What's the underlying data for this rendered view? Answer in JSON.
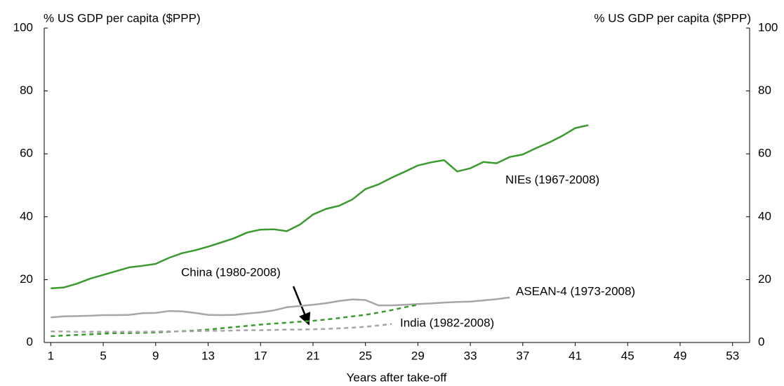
{
  "chart_data": {
    "type": "line",
    "ylabel": "% US GDP per capita ($PPP)",
    "y2label": "% US GDP per capita ($PPP)",
    "xlabel": "Years after take-off",
    "x": [
      1,
      2,
      3,
      4,
      5,
      6,
      7,
      8,
      9,
      10,
      11,
      12,
      13,
      14,
      15,
      16,
      17,
      18,
      19,
      20,
      21,
      22,
      23,
      24,
      25,
      26,
      27,
      28,
      29,
      30,
      31,
      32,
      33,
      34,
      35,
      36,
      37,
      38,
      39,
      40,
      41,
      42
    ],
    "xlim": [
      0.5,
      54.3
    ],
    "xticks": [
      1,
      5,
      9,
      13,
      17,
      21,
      25,
      29,
      33,
      37,
      41,
      45,
      49,
      53
    ],
    "ylim": [
      0,
      100
    ],
    "yticks": [
      0,
      20,
      40,
      60,
      80,
      100
    ],
    "y2lim": [
      0,
      100
    ],
    "y2ticks": [
      0,
      20,
      40,
      60,
      80,
      100
    ],
    "series": [
      {
        "name": "NIEs (1967-2008)",
        "color": "#3a9a2e",
        "dashed": false,
        "values": [
          17.2,
          17.5,
          18.7,
          20.3,
          21.5,
          22.7,
          23.9,
          24.4,
          25,
          26.9,
          28.4,
          29.3,
          30.5,
          31.8,
          33.2,
          35,
          35.9,
          36,
          35.4,
          37.5,
          40.7,
          42.5,
          43.5,
          45.5,
          48.8,
          50.3,
          52.4,
          54.3,
          56.3,
          57.3,
          58,
          54.4,
          55.4,
          57.4,
          57,
          59,
          59.8,
          61.8,
          63.6,
          65.7,
          68.2,
          69.1
        ]
      },
      {
        "name": "ASEAN-4 (1973-2008)",
        "color": "#a6a6a6",
        "dashed": false,
        "values": [
          8,
          8.3,
          8.4,
          8.5,
          8.7,
          8.7,
          8.8,
          9.3,
          9.4,
          10,
          9.9,
          9.4,
          8.8,
          8.7,
          8.8,
          9.2,
          9.6,
          10.2,
          11.2,
          11.6,
          12,
          12.5,
          13.2,
          13.7,
          13.5,
          11.8,
          11.8,
          12,
          12.2,
          12.4,
          12.7,
          12.9,
          13,
          13.4,
          13.8,
          14.3,
          null,
          null,
          null,
          null,
          null,
          null
        ]
      },
      {
        "name": "China (1980-2008)",
        "color": "#3a9a2e",
        "dashed": true,
        "values": [
          2,
          2.2,
          2.4,
          2.6,
          2.8,
          3,
          3,
          3.1,
          3.2,
          3.4,
          3.6,
          3.8,
          4.1,
          4.5,
          4.9,
          5.3,
          5.7,
          6,
          6.3,
          6.6,
          6.9,
          7.3,
          7.8,
          8.3,
          8.8,
          9.5,
          10.3,
          11.2,
          12,
          null,
          null,
          null,
          null,
          null,
          null,
          null,
          null,
          null,
          null,
          null,
          null,
          null
        ]
      },
      {
        "name": "India (1982-2008)",
        "color": "#a6a6a6",
        "dashed": true,
        "values": [
          3.5,
          3.5,
          3.4,
          3.4,
          3.4,
          3.4,
          3.4,
          3.4,
          3.5,
          3.5,
          3.5,
          3.6,
          3.7,
          3.7,
          3.8,
          3.9,
          3.9,
          4,
          4.1,
          4.1,
          4.2,
          4.3,
          4.5,
          4.7,
          5,
          5.4,
          5.9,
          null,
          null,
          null,
          null,
          null,
          null,
          null,
          null,
          null,
          null,
          null,
          null,
          null,
          null,
          null
        ]
      }
    ]
  }
}
